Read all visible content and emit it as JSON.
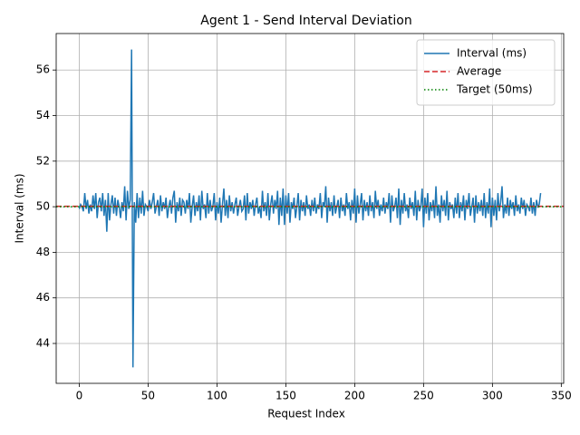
{
  "chart_data": {
    "type": "line",
    "title": "Agent 1 - Send Interval Deviation",
    "xlabel": "Request Index",
    "ylabel": "Interval (ms)",
    "xlim": [
      -16.75,
      351.75
    ],
    "ylim": [
      42.25,
      57.6
    ],
    "xticks": [
      0,
      50,
      100,
      150,
      200,
      250,
      300,
      350
    ],
    "yticks": [
      44,
      46,
      48,
      50,
      52,
      54,
      56
    ],
    "grid": true,
    "legend": "upper right",
    "series": [
      {
        "name": "Interval (ms)",
        "color": "#1f77b4",
        "x": [
          0,
          1,
          2,
          3,
          4,
          5,
          6,
          7,
          8,
          9,
          10,
          11,
          12,
          13,
          14,
          15,
          16,
          17,
          18,
          19,
          20,
          21,
          22,
          23,
          24,
          25,
          26,
          27,
          28,
          29,
          30,
          31,
          32,
          33,
          34,
          35,
          36,
          37,
          38,
          39,
          40,
          41,
          42,
          43,
          44,
          45,
          46,
          47,
          48,
          49,
          50,
          51,
          52,
          53,
          54,
          55,
          56,
          57,
          58,
          59,
          60,
          61,
          62,
          63,
          64,
          65,
          66,
          67,
          68,
          69,
          70,
          71,
          72,
          73,
          74,
          75,
          76,
          77,
          78,
          79,
          80,
          81,
          82,
          83,
          84,
          85,
          86,
          87,
          88,
          89,
          90,
          91,
          92,
          93,
          94,
          95,
          96,
          97,
          98,
          99,
          100,
          101,
          102,
          103,
          104,
          105,
          106,
          107,
          108,
          109,
          110,
          111,
          112,
          113,
          114,
          115,
          116,
          117,
          118,
          119,
          120,
          121,
          122,
          123,
          124,
          125,
          126,
          127,
          128,
          129,
          130,
          131,
          132,
          133,
          134,
          135,
          136,
          137,
          138,
          139,
          140,
          141,
          142,
          143,
          144,
          145,
          146,
          147,
          148,
          149,
          150,
          151,
          152,
          153,
          154,
          155,
          156,
          157,
          158,
          159,
          160,
          161,
          162,
          163,
          164,
          165,
          166,
          167,
          168,
          169,
          170,
          171,
          172,
          173,
          174,
          175,
          176,
          177,
          178,
          179,
          180,
          181,
          182,
          183,
          184,
          185,
          186,
          187,
          188,
          189,
          190,
          191,
          192,
          193,
          194,
          195,
          196,
          197,
          198,
          199,
          200,
          201,
          202,
          203,
          204,
          205,
          206,
          207,
          208,
          209,
          210,
          211,
          212,
          213,
          214,
          215,
          216,
          217,
          218,
          219,
          220,
          221,
          222,
          223,
          224,
          225,
          226,
          227,
          228,
          229,
          230,
          231,
          232,
          233,
          234,
          235,
          236,
          237,
          238,
          239,
          240,
          241,
          242,
          243,
          244,
          245,
          246,
          247,
          248,
          249,
          250,
          251,
          252,
          253,
          254,
          255,
          256,
          257,
          258,
          259,
          260,
          261,
          262,
          263,
          264,
          265,
          266,
          267,
          268,
          269,
          270,
          271,
          272,
          273,
          274,
          275,
          276,
          277,
          278,
          279,
          280,
          281,
          282,
          283,
          284,
          285,
          286,
          287,
          288,
          289,
          290,
          291,
          292,
          293,
          294,
          295,
          296,
          297,
          298,
          299,
          300,
          301,
          302,
          303,
          304,
          305,
          306,
          307,
          308,
          309,
          310,
          311,
          312,
          313,
          314,
          315,
          316,
          317,
          318,
          319,
          320,
          321,
          322,
          323,
          324,
          325,
          326,
          327,
          328,
          329,
          330,
          331,
          332,
          333,
          334,
          335
        ],
        "values": [
          49.9,
          50.1,
          50.0,
          49.8,
          50.6,
          49.9,
          50.3,
          49.7,
          50.1,
          49.8,
          50.5,
          49.9,
          50.6,
          49.5,
          50.2,
          50.4,
          49.8,
          50.6,
          49.6,
          50.3,
          48.9,
          50.6,
          49.4,
          50.1,
          50.5,
          49.7,
          50.4,
          49.6,
          50.3,
          50.0,
          49.5,
          50.2,
          49.8,
          50.9,
          49.4,
          50.7,
          49.9,
          50.3,
          56.9,
          42.95,
          50.2,
          49.3,
          50.6,
          49.5,
          50.4,
          49.7,
          50.7,
          49.6,
          50.1,
          50.0,
          49.8,
          50.3,
          49.9,
          50.2,
          50.6,
          49.7,
          50.0,
          50.3,
          49.6,
          50.5,
          49.8,
          50.2,
          49.9,
          50.4,
          49.5,
          50.0,
          50.3,
          49.7,
          50.4,
          50.7,
          49.3,
          50.2,
          49.8,
          50.4,
          49.6,
          50.3,
          50.2,
          49.7,
          50.3,
          49.9,
          50.6,
          49.3,
          50.0,
          50.5,
          49.6,
          50.2,
          49.8,
          50.5,
          49.4,
          50.7,
          49.9,
          50.1,
          49.5,
          50.6,
          49.7,
          50.3,
          49.8,
          50.0,
          50.6,
          49.4,
          50.2,
          49.7,
          50.4,
          49.3,
          50.1,
          50.8,
          49.6,
          50.3,
          49.5,
          50.5,
          49.8,
          50.2,
          49.7,
          50.1,
          50.4,
          49.6,
          50.0,
          50.3,
          49.8,
          49.9,
          50.5,
          49.4,
          50.6,
          49.7,
          50.2,
          49.9,
          50.3,
          49.6,
          50.1,
          50.4,
          49.7,
          50.0,
          49.5,
          50.7,
          49.8,
          50.2,
          49.6,
          50.6,
          49.4,
          50.1,
          50.5,
          49.7,
          50.3,
          49.9,
          50.7,
          49.2,
          50.4,
          49.6,
          50.8,
          49.2,
          50.5,
          49.7,
          50.6,
          49.3,
          50.2,
          49.9,
          50.4,
          49.5,
          50.0,
          50.6,
          49.4,
          50.3,
          49.8,
          50.2,
          49.6,
          50.5,
          49.9,
          50.1,
          49.6,
          50.3,
          49.8,
          50.4,
          49.7,
          50.1,
          49.9,
          50.6,
          49.5,
          50.2,
          50.0,
          50.9,
          49.3,
          50.4,
          49.8,
          50.2,
          49.6,
          50.5,
          49.7,
          50.0,
          50.3,
          49.5,
          50.4,
          49.8,
          50.1,
          49.6,
          50.6,
          49.9,
          50.2,
          49.4,
          50.3,
          49.7,
          50.8,
          49.3,
          50.5,
          49.7,
          50.1,
          50.6,
          49.4,
          50.3,
          49.8,
          50.2,
          49.6,
          50.5,
          49.8,
          50.2,
          49.5,
          50.7,
          49.9,
          50.3,
          49.6,
          50.1,
          49.8,
          50.4,
          49.7,
          50.2,
          49.9,
          50.6,
          49.3,
          50.5,
          49.8,
          50.0,
          50.4,
          49.5,
          50.8,
          49.2,
          50.3,
          49.7,
          50.6,
          49.8,
          50.1,
          49.5,
          50.4,
          49.9,
          50.2,
          49.6,
          50.7,
          49.4,
          50.3,
          49.8,
          50.0,
          50.8,
          49.1,
          50.4,
          49.7,
          50.6,
          49.4,
          50.2,
          49.8,
          50.3,
          49.5,
          50.9,
          49.6,
          50.1,
          49.3,
          50.5,
          49.8,
          50.3,
          49.6,
          50.7,
          49.4,
          50.2,
          49.9,
          50.1,
          49.5,
          50.4,
          49.7,
          50.6,
          49.5,
          50.2,
          49.8,
          50.5,
          49.4,
          50.3,
          49.9,
          50.6,
          49.6,
          50.0,
          50.4,
          49.3,
          50.5,
          49.7,
          50.2,
          49.8,
          50.3,
          49.6,
          50.6,
          49.5,
          50.2,
          49.7,
          50.8,
          49.1,
          50.4,
          49.6,
          50.3,
          49.4,
          50.6,
          49.8,
          50.2,
          50.9,
          49.5,
          50.1,
          49.7,
          50.4,
          49.6,
          50.3,
          49.9,
          50.2,
          49.6,
          50.5,
          49.8,
          50.1,
          49.7,
          50.4,
          49.9,
          50.3,
          49.6,
          50.1,
          50.0,
          49.8,
          50.4,
          49.7,
          50.2,
          49.6,
          50.3,
          50.0,
          50.1,
          50.6
        ]
      }
    ],
    "hlines": [
      {
        "name": "Average",
        "color": "#d62728",
        "style": "dashed",
        "value": 50.02
      },
      {
        "name": "Target (50ms)",
        "color": "#008000",
        "style": "dotted",
        "value": 50
      }
    ]
  }
}
